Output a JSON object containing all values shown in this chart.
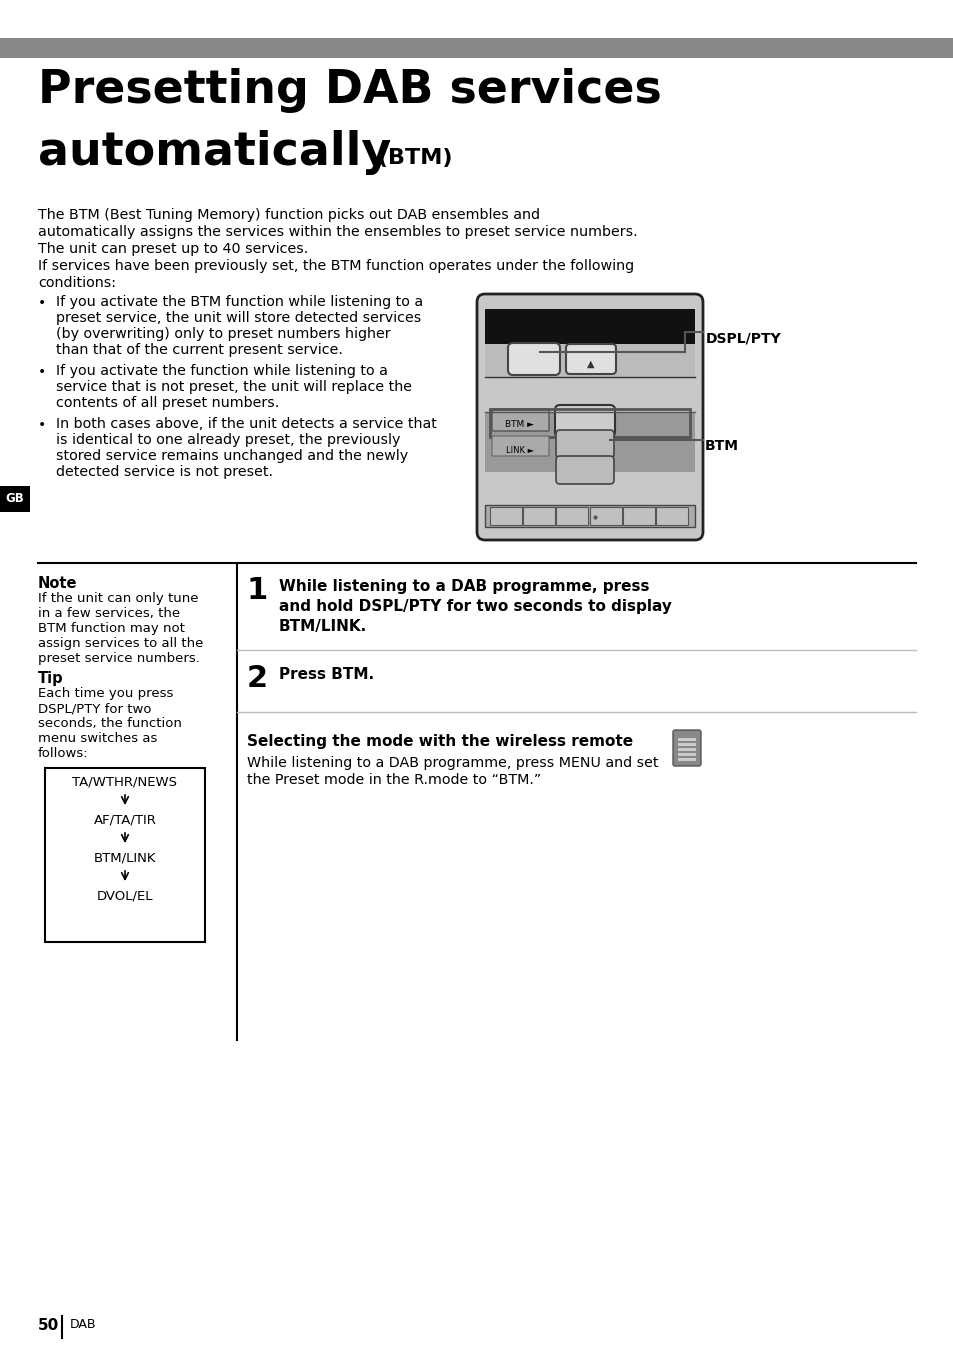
{
  "bg_color": "#ffffff",
  "header_bar_color": "#888888",
  "title_line1": "Presetting DAB services",
  "title_line2_main": "automatically",
  "title_line2_small": " (BTM)",
  "body_text": "The BTM (Best Tuning Memory) function picks out DAB ensembles and\nautomatically assigns the services within the ensembles to preset service numbers.\nThe unit can preset up to 40 services.\nIf services have been previously set, the BTM function operates under the following\nconditions:",
  "bullet1": "If you activate the BTM function while listening to a\npreset service, the unit will store detected services\n(by overwriting) only to preset numbers higher\nthan that of the current present service.",
  "bullet2": "If you activate the function while listening to a\nservice that is not preset, the unit will replace the\ncontents of all preset numbers.",
  "bullet3": "In both cases above, if the unit detects a service that\nis identical to one already preset, the previously\nstored service remains unchanged and the newly\ndetected service is not preset.",
  "note_title": "Note",
  "note_text": "If the unit can only tune\nin a few services, the\nBTM function may not\nassign services to all the\npreset service numbers.",
  "tip_title": "Tip",
  "tip_text": "Each time you press\nDSPL/PTY for two\nseconds, the function\nmenu switches as\nfollows:",
  "flow_items": [
    "TA/WTHR/NEWS",
    "AF/TA/TIR",
    "BTM/LINK",
    "DVOL/EL"
  ],
  "step1_num": "1",
  "step1_text": "While listening to a DAB programme, press\nand hold DSPL/PTY for two seconds to display\nBTM/LINK.",
  "step2_num": "2",
  "step2_text": "Press BTM.",
  "wireless_title": "Selecting the mode with the wireless remote",
  "wireless_text": "While listening to a DAB programme, press MENU and set\nthe Preset mode in the R.mode to “BTM.”",
  "page_num": "50",
  "page_label": "DAB",
  "gb_label": "GB",
  "dspl_label": "DSPL/PTY",
  "btm_label": "BTM"
}
